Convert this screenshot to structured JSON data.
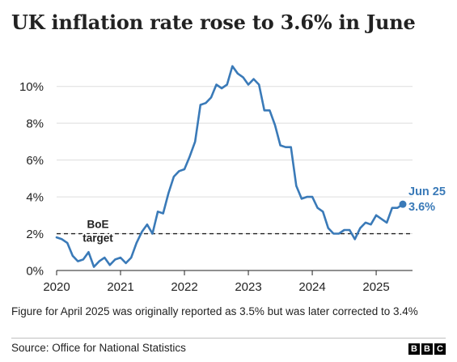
{
  "title": "UK inflation rate rose to 3.6% in June",
  "footnote": "Figure for April 2025 was originally reported as 3.5% but was later corrected to 3.4%",
  "source": "Source: Office for National Statistics",
  "logo": [
    "B",
    "B",
    "C"
  ],
  "colors": {
    "series": "#3a7ab8",
    "text": "#222222",
    "grid": "#dddddd",
    "axis": "#222222",
    "target_line": "#222222"
  },
  "chart_data": {
    "type": "line",
    "title": "UK inflation rate rose to 3.6% in June",
    "xlabel": "",
    "ylabel": "",
    "x_ticks": [
      "2020",
      "2021",
      "2022",
      "2023",
      "2024",
      "2025"
    ],
    "y_ticks": [
      "0%",
      "2%",
      "4%",
      "6%",
      "8%",
      "10%"
    ],
    "y_tick_values": [
      0,
      2,
      4,
      6,
      8,
      10
    ],
    "ylim": [
      0,
      11
    ],
    "grid": "horizontal",
    "x_start": "2020-01",
    "x_end": "2025-06",
    "series": [
      {
        "name": "",
        "color": "#3a7ab8",
        "x": [
          "2020-01",
          "2020-02",
          "2020-03",
          "2020-04",
          "2020-05",
          "2020-06",
          "2020-07",
          "2020-08",
          "2020-09",
          "2020-10",
          "2020-11",
          "2020-12",
          "2021-01",
          "2021-02",
          "2021-03",
          "2021-04",
          "2021-05",
          "2021-06",
          "2021-07",
          "2021-08",
          "2021-09",
          "2021-10",
          "2021-11",
          "2021-12",
          "2022-01",
          "2022-02",
          "2022-03",
          "2022-04",
          "2022-05",
          "2022-06",
          "2022-07",
          "2022-08",
          "2022-09",
          "2022-10",
          "2022-11",
          "2022-12",
          "2023-01",
          "2023-02",
          "2023-03",
          "2023-04",
          "2023-05",
          "2023-06",
          "2023-07",
          "2023-08",
          "2023-09",
          "2023-10",
          "2023-11",
          "2023-12",
          "2024-01",
          "2024-02",
          "2024-03",
          "2024-04",
          "2024-05",
          "2024-06",
          "2024-07",
          "2024-08",
          "2024-09",
          "2024-10",
          "2024-11",
          "2024-12",
          "2025-01",
          "2025-02",
          "2025-03",
          "2025-04",
          "2025-05",
          "2025-06"
        ],
        "values": [
          1.8,
          1.7,
          1.5,
          0.8,
          0.5,
          0.6,
          1.0,
          0.2,
          0.5,
          0.7,
          0.3,
          0.6,
          0.7,
          0.4,
          0.7,
          1.5,
          2.1,
          2.5,
          2.0,
          3.2,
          3.1,
          4.2,
          5.1,
          5.4,
          5.5,
          6.2,
          7.0,
          9.0,
          9.1,
          9.4,
          10.1,
          9.9,
          10.1,
          11.1,
          10.7,
          10.5,
          10.1,
          10.4,
          10.1,
          8.7,
          8.7,
          7.9,
          6.8,
          6.7,
          6.7,
          4.6,
          3.9,
          4.0,
          4.0,
          3.4,
          3.2,
          2.3,
          2.0,
          2.0,
          2.2,
          2.2,
          1.7,
          2.3,
          2.6,
          2.5,
          3.0,
          2.8,
          2.6,
          3.4,
          3.4,
          3.6
        ]
      }
    ],
    "reference_line": {
      "value": 2,
      "label_lines": [
        "BoE",
        "target"
      ]
    },
    "annotation": {
      "x": "2025-06",
      "value": 3.6,
      "label_lines": [
        "Jun 25",
        "3.6%"
      ]
    }
  }
}
